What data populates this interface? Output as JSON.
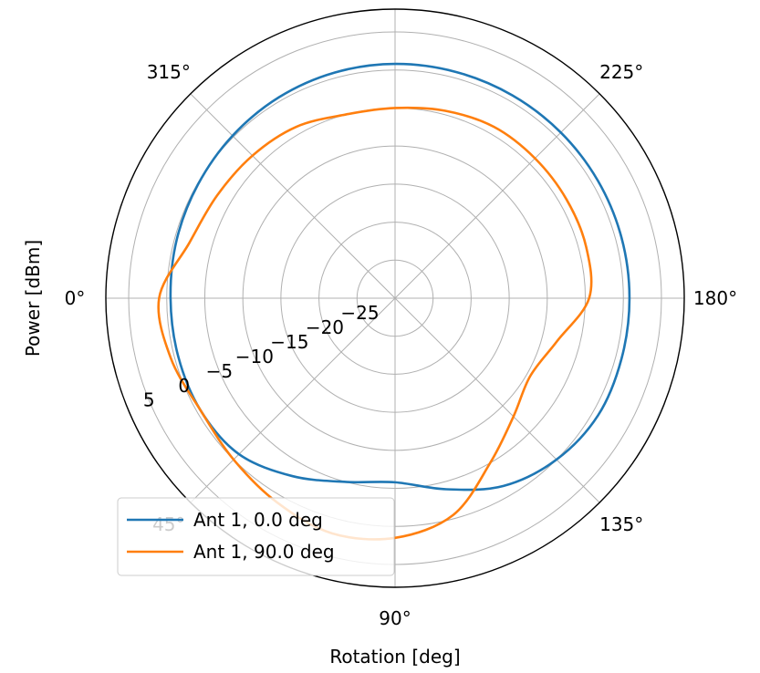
{
  "chart_data": {
    "type": "line",
    "projection": "polar",
    "theta_zero_location": "W",
    "theta_direction": "counter-clockwise (0° left, 90° bottom, 180° right, 270° top)",
    "xlabel": "Rotation [deg]",
    "ylabel": "Power [dBm]",
    "rlim": [
      -30,
      8
    ],
    "radial_ticks": [
      -25,
      -20,
      -15,
      -10,
      -5,
      0,
      5
    ],
    "radial_tick_labels": [
      "−25",
      "−20",
      "−15",
      "−10",
      "−5",
      "0",
      "5"
    ],
    "angular_ticks": [
      0,
      45,
      90,
      135,
      180,
      225,
      270,
      315
    ],
    "angular_tick_labels": [
      "0°",
      "45°",
      "90°",
      "135°",
      "180°",
      "225°",
      "270°",
      "315°"
    ],
    "grid": true,
    "legend_position": "lower-left",
    "series": [
      {
        "name": "Ant 1, 0.0 deg",
        "color": "#1f77b4",
        "theta": [
          0,
          15,
          30,
          45,
          60,
          75,
          90,
          105,
          120,
          135,
          150,
          165,
          180,
          195,
          210,
          225,
          240,
          255,
          270,
          285,
          300,
          315,
          330,
          345,
          360
        ],
        "r": [
          -0.5,
          -0.5,
          -0.5,
          -1.0,
          -3.0,
          -5.0,
          -5.8,
          -4.0,
          -1.5,
          0.0,
          0.8,
          0.8,
          0.8,
          0.8,
          0.8,
          0.8,
          0.8,
          0.8,
          0.8,
          0.7,
          0.5,
          0.2,
          -0.1,
          -0.3,
          -0.5
        ]
      },
      {
        "name": "Ant 1, 90.0 deg",
        "color": "#ff7f0e",
        "theta": [
          0,
          15,
          30,
          45,
          60,
          75,
          90,
          105,
          120,
          135,
          150,
          165,
          180,
          195,
          210,
          225,
          240,
          255,
          270,
          285,
          300,
          315,
          330,
          345,
          360
        ],
        "r": [
          1.0,
          0.5,
          -0.5,
          0.0,
          1.0,
          2.0,
          1.5,
          -0.5,
          -5.0,
          -8.0,
          -9.5,
          -8.0,
          -4.5,
          -4.0,
          -4.0,
          -4.0,
          -4.0,
          -4.5,
          -5.0,
          -5.0,
          -4.0,
          -3.5,
          -3.0,
          -2.0,
          1.0
        ]
      }
    ]
  }
}
